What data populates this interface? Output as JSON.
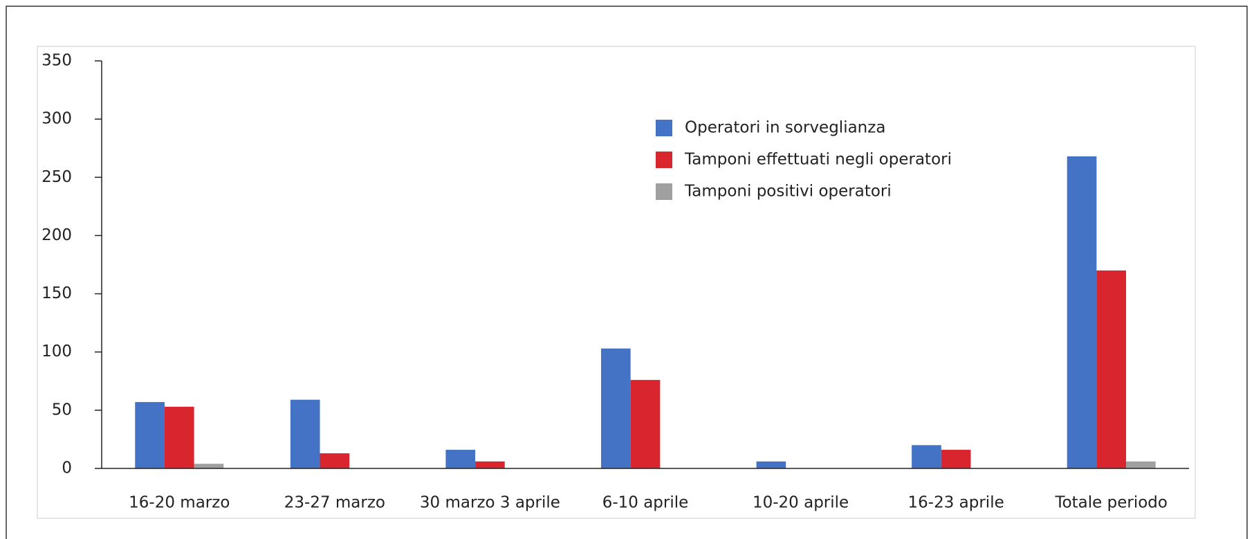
{
  "chart_data": {
    "type": "bar",
    "categories": [
      "16-20 marzo",
      "23-27 marzo",
      "30 marzo 3 aprile",
      "6-10 aprile",
      "10-20 aprile",
      "16-23 aprile",
      "Totale periodo"
    ],
    "series": [
      {
        "name": "Operatori in sorveglianza",
        "color": "#4472c4",
        "values": [
          57,
          59,
          16,
          103,
          6,
          20,
          268
        ]
      },
      {
        "name": "Tamponi effettuati negli operatori",
        "color": "#d9262e",
        "values": [
          53,
          13,
          6,
          76,
          0,
          16,
          170
        ]
      },
      {
        "name": "Tamponi positivi operatori",
        "color": "#a0a0a0",
        "values": [
          4,
          0,
          0,
          0,
          0,
          0,
          6
        ]
      }
    ],
    "ylim": [
      0,
      350
    ],
    "yticks": [
      0,
      50,
      100,
      150,
      200,
      250,
      300,
      350
    ],
    "grid": false
  }
}
